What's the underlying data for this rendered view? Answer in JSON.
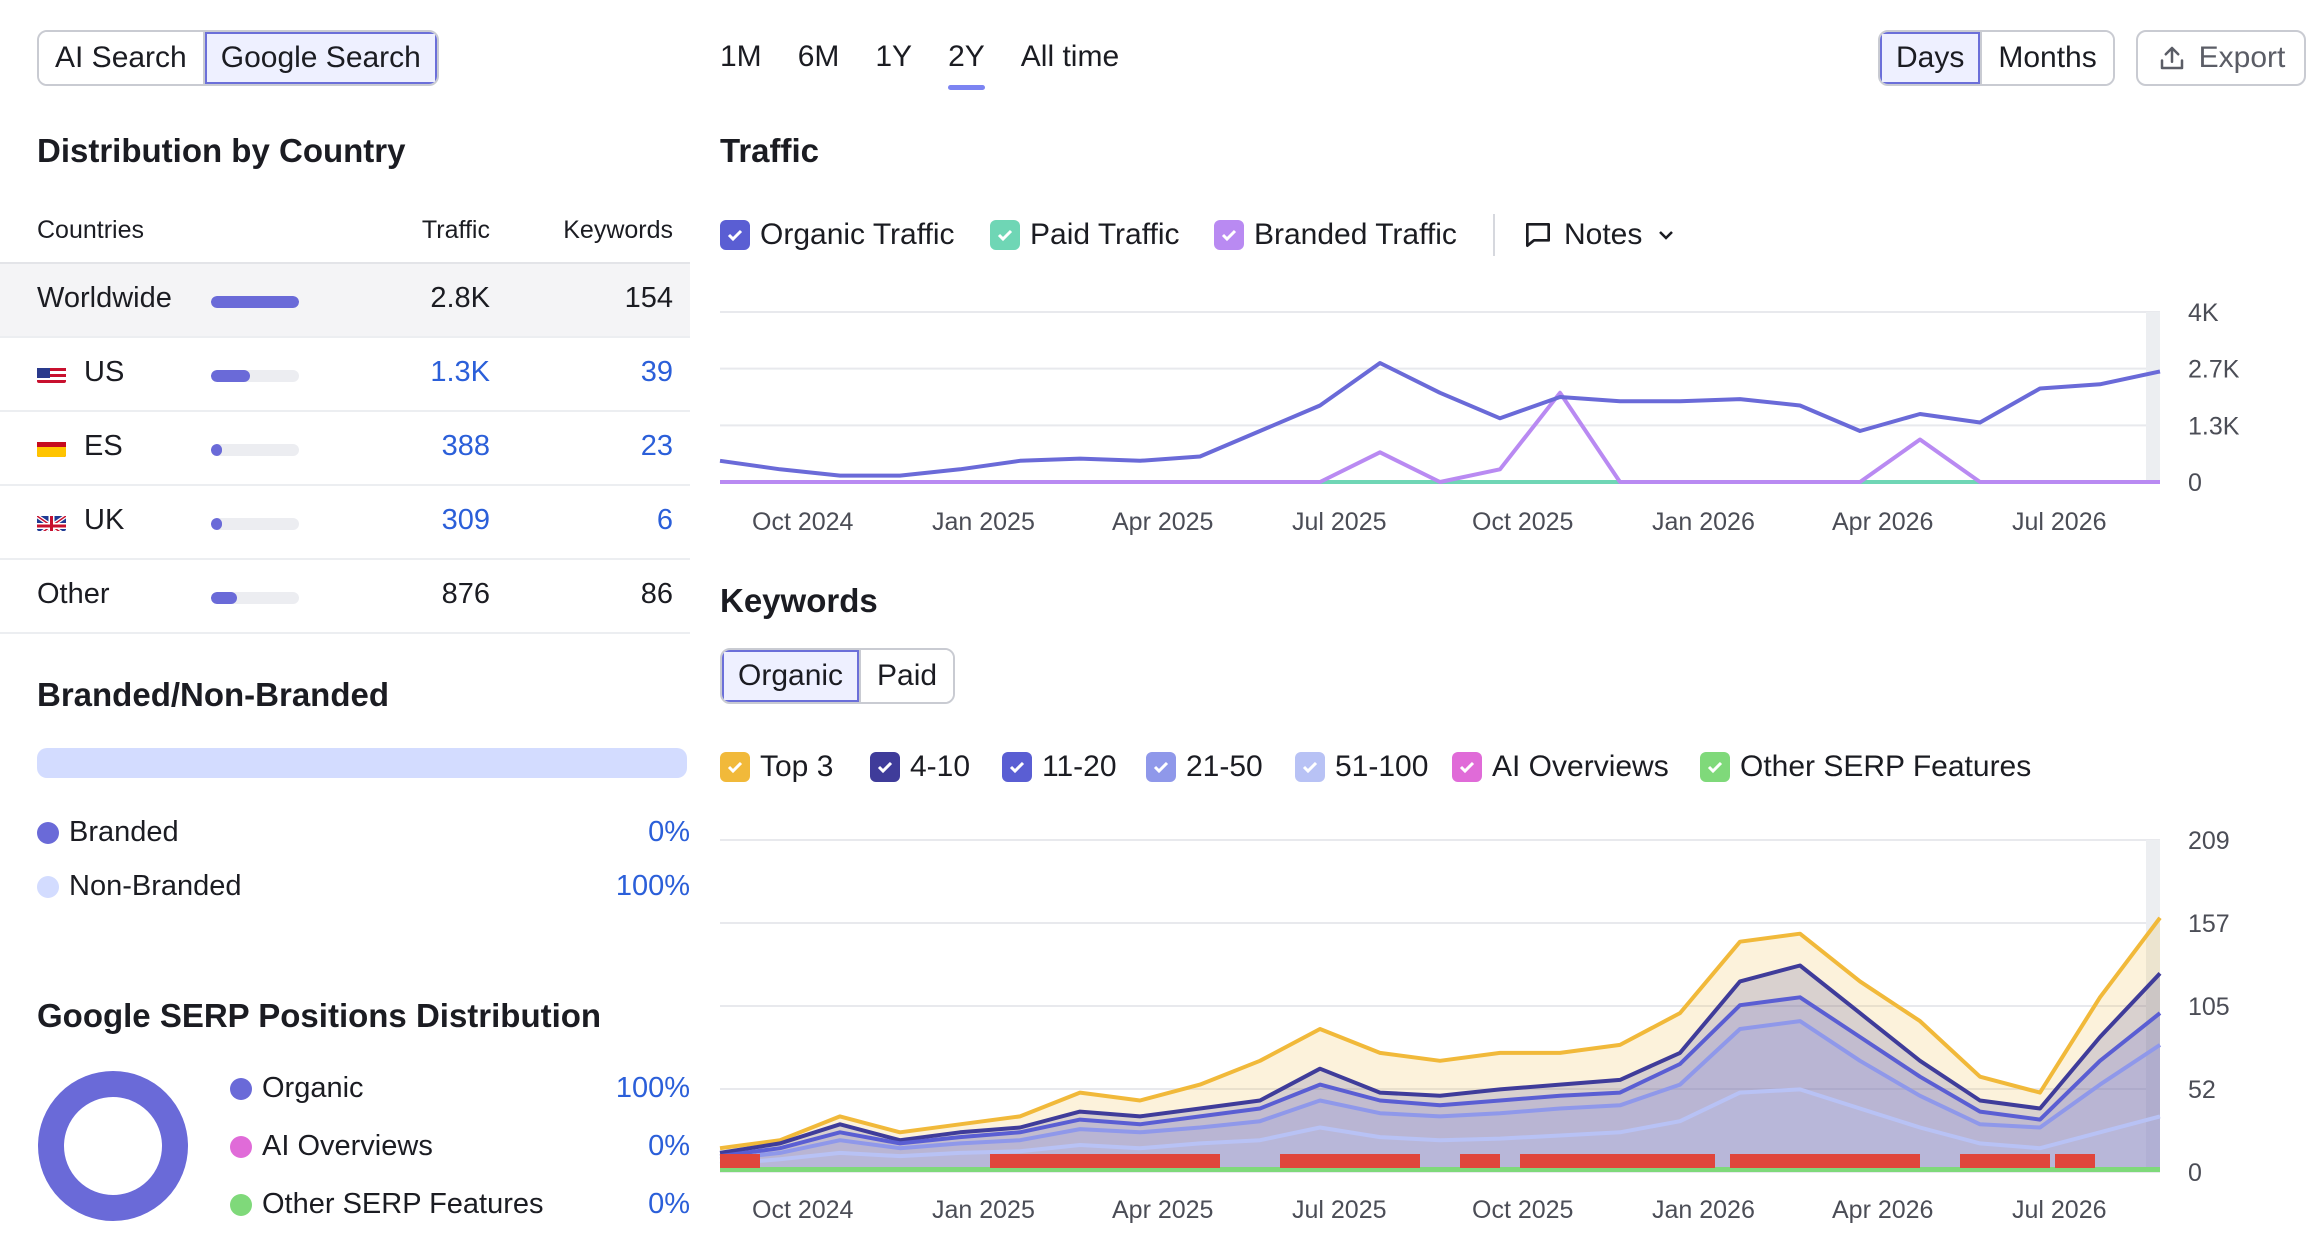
{
  "search_toggle": {
    "options": [
      "AI Search",
      "Google Search"
    ],
    "active": "Google Search"
  },
  "distribution": {
    "title": "Distribution by Country",
    "headers": {
      "countries": "Countries",
      "traffic": "Traffic",
      "keywords": "Keywords"
    },
    "rows": [
      {
        "name": "Worldwide",
        "flag": "",
        "traffic": "2.8K",
        "keywords": "154",
        "share": 1.0,
        "highlight": true,
        "link": false
      },
      {
        "name": "US",
        "flag": "us-flag-icon",
        "traffic": "1.3K",
        "keywords": "39",
        "share": 0.44,
        "highlight": false,
        "link": true
      },
      {
        "name": "ES",
        "flag": "es-flag-icon",
        "traffic": "388",
        "keywords": "23",
        "share": 0.12,
        "highlight": false,
        "link": true
      },
      {
        "name": "UK",
        "flag": "uk-flag-icon",
        "traffic": "309",
        "keywords": "6",
        "share": 0.1,
        "highlight": false,
        "link": true
      },
      {
        "name": "Other",
        "flag": "",
        "traffic": "876",
        "keywords": "86",
        "share": 0.3,
        "highlight": false,
        "link": false
      }
    ]
  },
  "branded": {
    "title": "Branded/Non-Branded",
    "items": [
      {
        "label": "Branded",
        "value": "0%",
        "color": "#6a6ad8"
      },
      {
        "label": "Non-Branded",
        "value": "100%",
        "color": "#d3dcff"
      }
    ]
  },
  "serp": {
    "title": "Google SERP Positions Distribution",
    "items": [
      {
        "label": "Organic",
        "value": "100%",
        "color": "#6a6ad8"
      },
      {
        "label": "AI Overviews",
        "value": "0%",
        "color": "#e06bd8"
      },
      {
        "label": "Other SERP Features",
        "value": "0%",
        "color": "#7fd97a"
      }
    ]
  },
  "periods": {
    "options": [
      "1M",
      "6M",
      "1Y",
      "2Y",
      "All time"
    ],
    "active": "2Y"
  },
  "granularity": {
    "options": [
      "Days",
      "Months"
    ],
    "active": "Days"
  },
  "export_label": "Export",
  "traffic": {
    "title": "Traffic",
    "legend": [
      {
        "label": "Organic Traffic",
        "color": "#6a6ad8"
      },
      {
        "label": "Paid Traffic",
        "color": "#6fd6b5"
      },
      {
        "label": "Branded Traffic",
        "color": "#b98af2"
      }
    ],
    "notes_label": "Notes"
  },
  "keywords": {
    "title": "Keywords",
    "tabs": [
      "Organic",
      "Paid"
    ],
    "active_tab": "Organic",
    "legend": [
      {
        "label": "Top 3",
        "color": "#f1b93a"
      },
      {
        "label": "4-10",
        "color": "#3f3c9a"
      },
      {
        "label": "11-20",
        "color": "#5a5ed3"
      },
      {
        "label": "21-50",
        "color": "#8f98ea"
      },
      {
        "label": "51-100",
        "color": "#b8c2f5"
      },
      {
        "label": "AI Overviews",
        "color": "#e06bd8"
      },
      {
        "label": "Other SERP Features",
        "color": "#7fd97a"
      }
    ]
  },
  "chart_data": [
    {
      "type": "line",
      "title": "Traffic",
      "x_ticks": [
        "Oct 2024",
        "Jan 2025",
        "Apr 2025",
        "Jul 2025",
        "Oct 2025",
        "Jan 2026",
        "Apr 2026",
        "Jul 2026"
      ],
      "y_ticks": [
        "4K",
        "2.7K",
        "1.3K",
        "0"
      ],
      "ylim": [
        0,
        4000
      ],
      "x": [
        "2024-08",
        "2024-09",
        "2024-10",
        "2024-11",
        "2024-12",
        "2025-01",
        "2025-02",
        "2025-03",
        "2025-04",
        "2025-05",
        "2025-06",
        "2025-07",
        "2025-08",
        "2025-09",
        "2025-10",
        "2025-11",
        "2025-12",
        "2026-01",
        "2026-02",
        "2026-03",
        "2026-04",
        "2026-05",
        "2026-06",
        "2026-07",
        "2026-08"
      ],
      "series": [
        {
          "name": "Organic Traffic",
          "values": [
            500,
            300,
            150,
            150,
            300,
            500,
            550,
            500,
            600,
            1200,
            1800,
            2800,
            2100,
            1500,
            2000,
            1900,
            1900,
            1950,
            1800,
            1200,
            1600,
            1400,
            2200,
            2300,
            2600
          ]
        },
        {
          "name": "Paid Traffic",
          "values": [
            0,
            0,
            0,
            0,
            0,
            0,
            0,
            0,
            0,
            0,
            0,
            0,
            0,
            0,
            0,
            0,
            0,
            0,
            0,
            0,
            0,
            0,
            0,
            0,
            0
          ]
        },
        {
          "name": "Branded Traffic",
          "values": [
            0,
            0,
            0,
            0,
            0,
            0,
            0,
            0,
            0,
            0,
            0,
            700,
            0,
            300,
            2100,
            0,
            0,
            0,
            0,
            0,
            1000,
            0,
            0,
            0,
            0
          ]
        }
      ]
    },
    {
      "type": "area",
      "title": "Keywords",
      "x_ticks": [
        "Oct 2024",
        "Jan 2025",
        "Apr 2025",
        "Jul 2025",
        "Oct 2025",
        "Jan 2026",
        "Apr 2026",
        "Jul 2026"
      ],
      "y_ticks": [
        "209",
        "157",
        "105",
        "52",
        "0"
      ],
      "ylim": [
        0,
        209
      ],
      "x": [
        "2024-08",
        "2024-09",
        "2024-10",
        "2024-11",
        "2024-12",
        "2025-01",
        "2025-02",
        "2025-03",
        "2025-04",
        "2025-05",
        "2025-06",
        "2025-07",
        "2025-08",
        "2025-09",
        "2025-10",
        "2025-11",
        "2025-12",
        "2026-01",
        "2026-02",
        "2026-03",
        "2026-04",
        "2026-05",
        "2026-06",
        "2026-07",
        "2026-08"
      ],
      "series": [
        {
          "name": "Top 3",
          "values": [
            15,
            20,
            35,
            25,
            30,
            35,
            50,
            45,
            55,
            70,
            90,
            75,
            70,
            75,
            75,
            80,
            100,
            145,
            150,
            120,
            95,
            60,
            50,
            110,
            160
          ]
        },
        {
          "name": "4-10",
          "values": [
            12,
            18,
            30,
            20,
            25,
            28,
            38,
            35,
            40,
            45,
            65,
            50,
            48,
            52,
            55,
            58,
            75,
            120,
            130,
            100,
            70,
            45,
            40,
            85,
            125
          ]
        },
        {
          "name": "11-20",
          "values": [
            10,
            15,
            25,
            18,
            22,
            25,
            33,
            30,
            35,
            40,
            55,
            45,
            42,
            45,
            48,
            50,
            68,
            105,
            110,
            85,
            60,
            38,
            33,
            70,
            100
          ]
        },
        {
          "name": "21-50",
          "values": [
            8,
            12,
            20,
            15,
            18,
            20,
            27,
            25,
            28,
            32,
            45,
            37,
            35,
            37,
            40,
            42,
            55,
            90,
            95,
            70,
            48,
            30,
            28,
            55,
            80
          ]
        },
        {
          "name": "51-100",
          "values": [
            5,
            8,
            12,
            10,
            12,
            13,
            17,
            15,
            18,
            20,
            28,
            22,
            20,
            21,
            23,
            25,
            32,
            50,
            52,
            40,
            28,
            18,
            15,
            25,
            35
          ]
        }
      ]
    }
  ]
}
